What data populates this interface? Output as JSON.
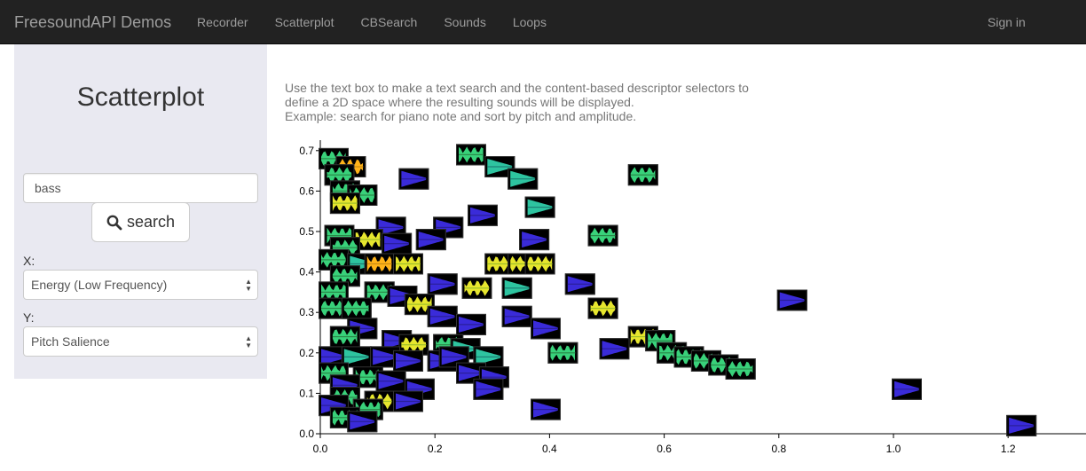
{
  "navbar": {
    "brand": "FreesoundAPI Demos",
    "items": [
      "Recorder",
      "Scatterplot",
      "CBSearch",
      "Sounds",
      "Loops"
    ],
    "signin": "Sign in"
  },
  "sidebar": {
    "title": "Scatterplot",
    "search_value": "bass",
    "search_label": "search",
    "x_label": "X:",
    "x_selected": "Energy (Low Frequency)",
    "y_label": "Y:",
    "y_selected": "Pitch Salience"
  },
  "intro": {
    "line1": "Use the text box to make a text search and the content-based descriptor selectors to",
    "line2": "define a 2D space where the resulting sounds will be displayed.",
    "line3": "Example: search for piano note and sort by pitch and amplitude."
  },
  "colors": {
    "navbar": "#222222",
    "sidebar": "#e9e9f1",
    "thumb_bg": "#000000"
  },
  "chart_data": {
    "type": "scatter",
    "xlim": [
      0,
      1.3
    ],
    "ylim": [
      0,
      0.7
    ],
    "x_ticks": [
      "0.0",
      "0.2",
      "0.4",
      "0.6",
      "0.8",
      "1.0",
      "1.2"
    ],
    "y_ticks": [
      "0.0",
      "0.1",
      "0.2",
      "0.3",
      "0.4",
      "0.5",
      "0.6",
      "0.7"
    ],
    "points": [
      {
        "x": 0.0,
        "y": 0.68,
        "c": "green"
      },
      {
        "x": 0.03,
        "y": 0.66,
        "c": "orange"
      },
      {
        "x": 0.01,
        "y": 0.64,
        "c": "green"
      },
      {
        "x": 0.02,
        "y": 0.6,
        "c": "green"
      },
      {
        "x": 0.05,
        "y": 0.59,
        "c": "green"
      },
      {
        "x": 0.02,
        "y": 0.57,
        "c": "yellow"
      },
      {
        "x": 0.24,
        "y": 0.69,
        "c": "green"
      },
      {
        "x": 0.29,
        "y": 0.66,
        "c": "teal"
      },
      {
        "x": 0.33,
        "y": 0.63,
        "c": "teal"
      },
      {
        "x": 0.14,
        "y": 0.63,
        "c": "blue"
      },
      {
        "x": 0.54,
        "y": 0.64,
        "c": "green"
      },
      {
        "x": 0.36,
        "y": 0.56,
        "c": "teal"
      },
      {
        "x": 0.26,
        "y": 0.54,
        "c": "blue"
      },
      {
        "x": 0.2,
        "y": 0.51,
        "c": "blue"
      },
      {
        "x": 0.1,
        "y": 0.51,
        "c": "blue"
      },
      {
        "x": 0.01,
        "y": 0.49,
        "c": "green"
      },
      {
        "x": 0.06,
        "y": 0.48,
        "c": "yellow"
      },
      {
        "x": 0.11,
        "y": 0.47,
        "c": "blue"
      },
      {
        "x": 0.17,
        "y": 0.48,
        "c": "blue"
      },
      {
        "x": 0.35,
        "y": 0.48,
        "c": "blue"
      },
      {
        "x": 0.47,
        "y": 0.49,
        "c": "green"
      },
      {
        "x": 0.02,
        "y": 0.46,
        "c": "green"
      },
      {
        "x": 0.0,
        "y": 0.43,
        "c": "green"
      },
      {
        "x": 0.05,
        "y": 0.42,
        "c": "teal"
      },
      {
        "x": 0.08,
        "y": 0.42,
        "c": "orange"
      },
      {
        "x": 0.13,
        "y": 0.42,
        "c": "yellow"
      },
      {
        "x": 0.29,
        "y": 0.42,
        "c": "yellow"
      },
      {
        "x": 0.33,
        "y": 0.42,
        "c": "yellow"
      },
      {
        "x": 0.36,
        "y": 0.42,
        "c": "yellow"
      },
      {
        "x": 0.02,
        "y": 0.39,
        "c": "green"
      },
      {
        "x": 0.19,
        "y": 0.37,
        "c": "blue"
      },
      {
        "x": 0.25,
        "y": 0.36,
        "c": "yellow"
      },
      {
        "x": 0.32,
        "y": 0.36,
        "c": "teal"
      },
      {
        "x": 0.43,
        "y": 0.37,
        "c": "blue"
      },
      {
        "x": 0.0,
        "y": 0.35,
        "c": "green"
      },
      {
        "x": 0.08,
        "y": 0.35,
        "c": "green"
      },
      {
        "x": 0.12,
        "y": 0.34,
        "c": "blue"
      },
      {
        "x": 0.15,
        "y": 0.32,
        "c": "yellow"
      },
      {
        "x": 0.0,
        "y": 0.31,
        "c": "green"
      },
      {
        "x": 0.04,
        "y": 0.31,
        "c": "green"
      },
      {
        "x": 0.47,
        "y": 0.31,
        "c": "yellow"
      },
      {
        "x": 0.8,
        "y": 0.33,
        "c": "blue"
      },
      {
        "x": 0.19,
        "y": 0.29,
        "c": "blue"
      },
      {
        "x": 0.32,
        "y": 0.29,
        "c": "blue"
      },
      {
        "x": 0.24,
        "y": 0.27,
        "c": "blue"
      },
      {
        "x": 0.37,
        "y": 0.26,
        "c": "blue"
      },
      {
        "x": 0.05,
        "y": 0.26,
        "c": "blue"
      },
      {
        "x": 0.02,
        "y": 0.24,
        "c": "green"
      },
      {
        "x": 0.11,
        "y": 0.23,
        "c": "blue"
      },
      {
        "x": 0.14,
        "y": 0.22,
        "c": "yellow"
      },
      {
        "x": 0.2,
        "y": 0.22,
        "c": "green"
      },
      {
        "x": 0.23,
        "y": 0.21,
        "c": "teal"
      },
      {
        "x": 0.54,
        "y": 0.24,
        "c": "yellow"
      },
      {
        "x": 0.57,
        "y": 0.23,
        "c": "green"
      },
      {
        "x": 0.49,
        "y": 0.21,
        "c": "blue"
      },
      {
        "x": 0.4,
        "y": 0.2,
        "c": "green"
      },
      {
        "x": 0.0,
        "y": 0.19,
        "c": "blue"
      },
      {
        "x": 0.04,
        "y": 0.19,
        "c": "teal"
      },
      {
        "x": 0.09,
        "y": 0.19,
        "c": "blue"
      },
      {
        "x": 0.13,
        "y": 0.18,
        "c": "blue"
      },
      {
        "x": 0.19,
        "y": 0.18,
        "c": "blue"
      },
      {
        "x": 0.21,
        "y": 0.19,
        "c": "blue"
      },
      {
        "x": 0.27,
        "y": 0.19,
        "c": "teal"
      },
      {
        "x": 0.59,
        "y": 0.2,
        "c": "green"
      },
      {
        "x": 0.62,
        "y": 0.19,
        "c": "green"
      },
      {
        "x": 0.65,
        "y": 0.18,
        "c": "green"
      },
      {
        "x": 0.68,
        "y": 0.17,
        "c": "green"
      },
      {
        "x": 0.71,
        "y": 0.16,
        "c": "green"
      },
      {
        "x": 0.24,
        "y": 0.15,
        "c": "blue"
      },
      {
        "x": 0.28,
        "y": 0.14,
        "c": "blue"
      },
      {
        "x": 0.0,
        "y": 0.15,
        "c": "green"
      },
      {
        "x": 0.06,
        "y": 0.14,
        "c": "green"
      },
      {
        "x": 0.1,
        "y": 0.13,
        "c": "blue"
      },
      {
        "x": 0.02,
        "y": 0.12,
        "c": "blue"
      },
      {
        "x": 0.15,
        "y": 0.11,
        "c": "blue"
      },
      {
        "x": 0.27,
        "y": 0.11,
        "c": "blue"
      },
      {
        "x": 1.0,
        "y": 0.11,
        "c": "blue"
      },
      {
        "x": 0.02,
        "y": 0.09,
        "c": "green"
      },
      {
        "x": 0.08,
        "y": 0.08,
        "c": "yellow"
      },
      {
        "x": 0.13,
        "y": 0.08,
        "c": "blue"
      },
      {
        "x": 0.0,
        "y": 0.07,
        "c": "blue"
      },
      {
        "x": 0.06,
        "y": 0.06,
        "c": "green"
      },
      {
        "x": 0.37,
        "y": 0.06,
        "c": "blue"
      },
      {
        "x": 0.02,
        "y": 0.04,
        "c": "green"
      },
      {
        "x": 0.05,
        "y": 0.03,
        "c": "blue"
      },
      {
        "x": 1.2,
        "y": 0.02,
        "c": "blue"
      }
    ]
  }
}
